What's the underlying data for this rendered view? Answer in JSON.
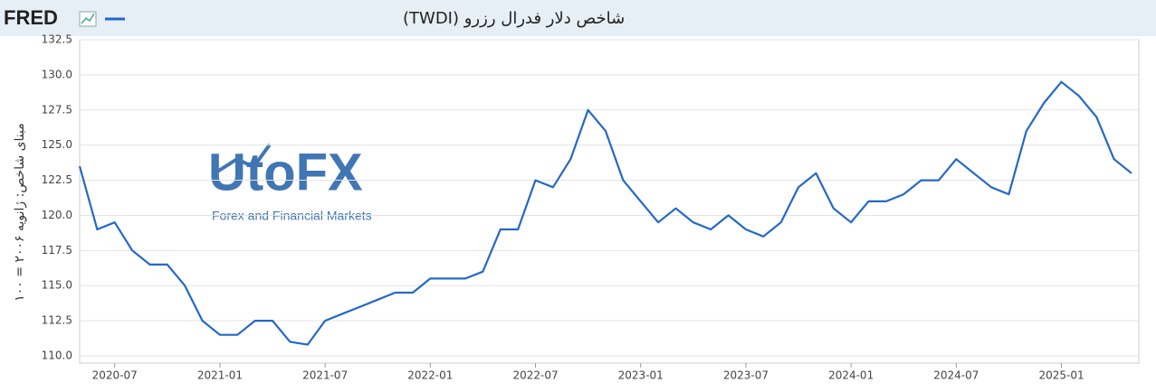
{
  "chart_data": {
    "type": "line",
    "logo": "FRED",
    "title": "شاخص دلار فدرال رزرو (TWDI)",
    "y_label": "مبنای شاخص: ژانویه ۲۰۰۶ = ۱۰۰",
    "watermark": {
      "brand": "UtoFX",
      "tagline": "Forex and Financial Markets"
    },
    "x": [
      "2020-05",
      "2020-06",
      "2020-07",
      "2020-08",
      "2020-09",
      "2020-10",
      "2020-11",
      "2020-12",
      "2021-01",
      "2021-02",
      "2021-03",
      "2021-04",
      "2021-05",
      "2021-06",
      "2021-07",
      "2021-08",
      "2021-09",
      "2021-10",
      "2021-11",
      "2021-12",
      "2022-01",
      "2022-02",
      "2022-03",
      "2022-04",
      "2022-05",
      "2022-06",
      "2022-07",
      "2022-08",
      "2022-09",
      "2022-10",
      "2022-11",
      "2022-12",
      "2023-01",
      "2023-02",
      "2023-03",
      "2023-04",
      "2023-05",
      "2023-06",
      "2023-07",
      "2023-08",
      "2023-09",
      "2023-10",
      "2023-11",
      "2023-12",
      "2024-01",
      "2024-02",
      "2024-03",
      "2024-04",
      "2024-05",
      "2024-06",
      "2024-07",
      "2024-08",
      "2024-09",
      "2024-10",
      "2024-11",
      "2024-12",
      "2025-01",
      "2025-02",
      "2025-03",
      "2025-04",
      "2025-05"
    ],
    "series": [
      {
        "color": "#2468c8",
        "values": [
          123.5,
          119,
          119.5,
          117.5,
          116.5,
          116.5,
          115,
          112.5,
          111.5,
          111.5,
          112.5,
          112.5,
          111,
          110.8,
          112.5,
          113,
          113.5,
          114,
          114.5,
          114.5,
          115.5,
          115.5,
          115.5,
          116,
          119,
          119,
          122.5,
          122,
          124,
          127.5,
          126,
          122.5,
          121,
          119.5,
          120.5,
          119.5,
          119,
          120,
          119,
          118.5,
          119.5,
          122,
          123,
          120.5,
          119.5,
          121,
          121,
          121.5,
          122.5,
          122.5,
          124,
          123,
          122,
          121.5,
          126,
          128,
          129.5,
          128.5,
          127,
          124,
          123
        ]
      }
    ],
    "xlim": [
      "2020-05",
      "2025-05"
    ],
    "xticks": [
      "2020-07",
      "2021-01",
      "2021-07",
      "2022-01",
      "2022-07",
      "2023-01",
      "2023-07",
      "2024-01",
      "2024-07",
      "2025-01"
    ],
    "ylim": [
      110,
      132.5
    ],
    "yticks": [
      {
        "value": 110,
        "label": "110.0"
      },
      112.5,
      {
        "value": 115,
        "label": "115.0"
      },
      117.5,
      {
        "value": 120,
        "label": "120.0"
      },
      122.5,
      {
        "value": 125,
        "label": "125.0"
      },
      127.5,
      {
        "value": 130,
        "label": "130.0"
      },
      132.5
    ],
    "grid": true
  }
}
